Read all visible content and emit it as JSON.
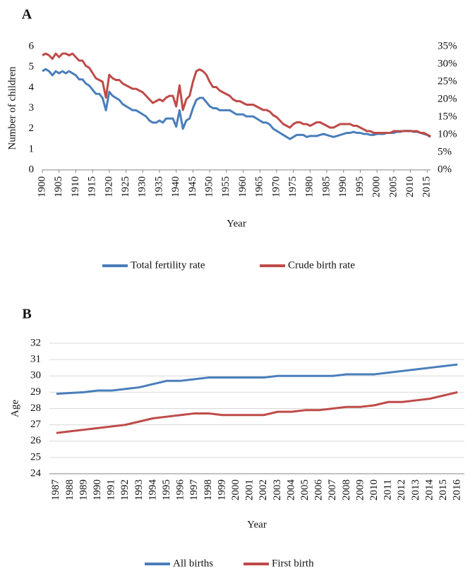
{
  "chart_data": [
    {
      "type": "line",
      "label": "A",
      "x_label": "Year",
      "y_label": "Number of children",
      "legend": "bottom",
      "grid": false,
      "x": [
        1900,
        1901,
        1902,
        1903,
        1904,
        1905,
        1906,
        1907,
        1908,
        1909,
        1910,
        1911,
        1912,
        1913,
        1914,
        1915,
        1916,
        1917,
        1918,
        1919,
        1920,
        1921,
        1922,
        1923,
        1924,
        1925,
        1926,
        1927,
        1928,
        1929,
        1930,
        1931,
        1932,
        1933,
        1934,
        1935,
        1936,
        1937,
        1938,
        1939,
        1940,
        1941,
        1942,
        1943,
        1944,
        1945,
        1946,
        1947,
        1948,
        1949,
        1950,
        1951,
        1952,
        1953,
        1954,
        1955,
        1956,
        1957,
        1958,
        1959,
        1960,
        1961,
        1962,
        1963,
        1964,
        1965,
        1966,
        1967,
        1968,
        1969,
        1970,
        1971,
        1972,
        1973,
        1974,
        1975,
        1976,
        1977,
        1978,
        1979,
        1980,
        1981,
        1982,
        1983,
        1984,
        1985,
        1986,
        1987,
        1988,
        1989,
        1990,
        1991,
        1992,
        1993,
        1994,
        1995,
        1996,
        1997,
        1998,
        1999,
        2000,
        2001,
        2002,
        2003,
        2004,
        2005,
        2006,
        2007,
        2008,
        2009,
        2010,
        2011,
        2012,
        2013,
        2014,
        2015,
        2016
      ],
      "xlim": [
        1900,
        2016
      ],
      "xticks": [
        1900,
        1905,
        1910,
        1915,
        1920,
        1925,
        1930,
        1935,
        1940,
        1945,
        1950,
        1955,
        1960,
        1965,
        1970,
        1975,
        1980,
        1985,
        1990,
        1995,
        2000,
        2005,
        2010,
        2015
      ],
      "ylim": [
        0,
        6
      ],
      "yticks": [
        0,
        1,
        2,
        3,
        4,
        5,
        6
      ],
      "y2lim": [
        0,
        35
      ],
      "y2ticks": [
        {
          "value": 0,
          "label": "0%"
        },
        {
          "value": 5,
          "label": "5%"
        },
        {
          "value": 10,
          "label": "10%"
        },
        {
          "value": 15,
          "label": "15%"
        },
        {
          "value": 20,
          "label": "20%"
        },
        {
          "value": 25,
          "label": "25%"
        },
        {
          "value": 30,
          "label": "30%"
        },
        {
          "value": 35,
          "label": "35%"
        }
      ],
      "series": [
        {
          "name": "Total fertility rate",
          "color": "#4a7ebb",
          "axis": "y",
          "values": [
            4.8,
            4.9,
            4.8,
            4.6,
            4.8,
            4.7,
            4.8,
            4.7,
            4.8,
            4.7,
            4.6,
            4.4,
            4.4,
            4.2,
            4.1,
            3.9,
            3.7,
            3.7,
            3.5,
            2.9,
            3.8,
            3.6,
            3.5,
            3.4,
            3.2,
            3.1,
            3.0,
            2.9,
            2.9,
            2.8,
            2.7,
            2.6,
            2.4,
            2.3,
            2.3,
            2.4,
            2.3,
            2.5,
            2.5,
            2.5,
            2.1,
            2.9,
            2.0,
            2.4,
            2.5,
            3.0,
            3.4,
            3.5,
            3.5,
            3.3,
            3.1,
            3.0,
            3.0,
            2.9,
            2.9,
            2.9,
            2.9,
            2.8,
            2.7,
            2.7,
            2.7,
            2.6,
            2.6,
            2.6,
            2.5,
            2.4,
            2.3,
            2.3,
            2.2,
            2.0,
            1.9,
            1.8,
            1.7,
            1.6,
            1.5,
            1.6,
            1.7,
            1.7,
            1.7,
            1.6,
            1.65,
            1.65,
            1.65,
            1.7,
            1.75,
            1.7,
            1.65,
            1.6,
            1.65,
            1.7,
            1.75,
            1.8,
            1.8,
            1.85,
            1.8,
            1.8,
            1.75,
            1.75,
            1.7,
            1.7,
            1.75,
            1.75,
            1.75,
            1.8,
            1.8,
            1.8,
            1.85,
            1.85,
            1.9,
            1.9,
            1.9,
            1.85,
            1.85,
            1.8,
            1.75,
            1.7,
            1.6
          ]
        },
        {
          "name": "Crude birth rate",
          "color": "#be4b48",
          "axis": "y2",
          "values": [
            32.5,
            33,
            32.5,
            31.5,
            33,
            32,
            33,
            33,
            32.5,
            33,
            32,
            31,
            31,
            29.5,
            29,
            27.5,
            26,
            25.5,
            25,
            20.5,
            27,
            26,
            25.5,
            25.5,
            24.5,
            24,
            23.5,
            23,
            23,
            22.5,
            22,
            21,
            20,
            19,
            19.5,
            20,
            19.5,
            20.5,
            21,
            21,
            18,
            24,
            17,
            20,
            21,
            25,
            28,
            28.5,
            28,
            27,
            25,
            23.5,
            23.5,
            22.5,
            22,
            21.5,
            21,
            20,
            19.5,
            19.5,
            19,
            18.5,
            18.5,
            18.5,
            18,
            17.5,
            17,
            17,
            16.5,
            15.5,
            15,
            14,
            13,
            12.5,
            12,
            13,
            13.5,
            13.5,
            13,
            13,
            12.5,
            13,
            13.5,
            13.5,
            13,
            12.5,
            12,
            12,
            12.5,
            13,
            13,
            13,
            13,
            12.5,
            12.5,
            12,
            11.5,
            11,
            11,
            10.5,
            10.5,
            10.5,
            10.5,
            10.5,
            10.5,
            11,
            11,
            11,
            11,
            11,
            11,
            11,
            11,
            10.5,
            10.5,
            10,
            9.5
          ]
        }
      ]
    },
    {
      "type": "line",
      "label": "B",
      "x_label": "Year",
      "y_label": "Age",
      "legend": "bottom",
      "grid": true,
      "categories": [
        "1987",
        "1988",
        "1989",
        "1990",
        "1991",
        "1992",
        "1993",
        "1994",
        "1995",
        "1996",
        "1997",
        "1998",
        "1999",
        "2000",
        "2001",
        "2002",
        "2003",
        "2004",
        "2005",
        "2006",
        "2007",
        "2008",
        "2009",
        "2010",
        "2011",
        "2012",
        "2013",
        "2014",
        "2015",
        "2016"
      ],
      "ylim": [
        24,
        32
      ],
      "yticks": [
        24,
        25,
        26,
        27,
        28,
        29,
        30,
        31,
        32
      ],
      "series": [
        {
          "name": "All births",
          "color": "#4a7ebb",
          "values": [
            28.9,
            28.95,
            29.0,
            29.1,
            29.1,
            29.2,
            29.3,
            29.5,
            29.7,
            29.7,
            29.8,
            29.9,
            29.9,
            29.9,
            29.9,
            29.9,
            30.0,
            30.0,
            30.0,
            30.0,
            30.0,
            30.1,
            30.1,
            30.1,
            30.2,
            30.3,
            30.4,
            30.5,
            30.6,
            30.7
          ]
        },
        {
          "name": "First birth",
          "color": "#be4b48",
          "values": [
            26.5,
            26.6,
            26.7,
            26.8,
            26.9,
            27.0,
            27.2,
            27.4,
            27.5,
            27.6,
            27.7,
            27.7,
            27.6,
            27.6,
            27.6,
            27.6,
            27.8,
            27.8,
            27.9,
            27.9,
            28.0,
            28.1,
            28.1,
            28.2,
            28.4,
            28.4,
            28.5,
            28.6,
            28.8,
            29.0
          ]
        }
      ]
    }
  ]
}
